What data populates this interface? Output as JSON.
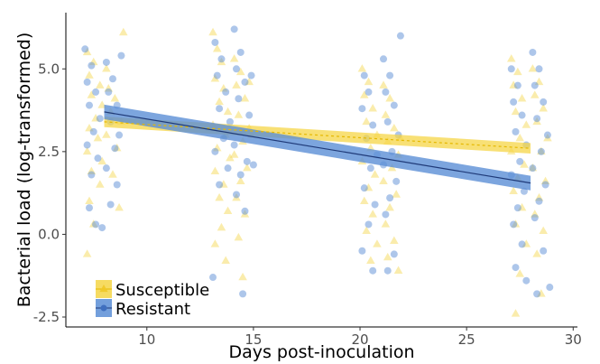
{
  "chart_data": {
    "type": "scatter",
    "xlabel": "Days post-inoculation",
    "ylabel": "Bacterial load (log-transformed)",
    "xlim": [
      6.2,
      30.2
    ],
    "ylim": [
      -2.8,
      6.7
    ],
    "xticks": [
      10,
      15,
      20,
      25,
      30
    ],
    "yticks": [
      -2.5,
      0.0,
      2.5,
      5.0
    ],
    "ytick_labels": [
      "-2.5",
      "0.0",
      "2.5",
      "5.0"
    ],
    "grid": false,
    "legend_position": "bottom-left",
    "series": [
      {
        "name": "Susceptible",
        "marker": "triangle",
        "color": "#F5D547",
        "fit": {
          "x": [
            8,
            28
          ],
          "y": [
            3.4,
            2.6
          ],
          "ci_halfwidth": 0.16
        },
        "points": [
          [
            7.2,
            5.5
          ],
          [
            7.5,
            5.2
          ],
          [
            7.3,
            4.8
          ],
          [
            7.8,
            4.5
          ],
          [
            7.4,
            4.2
          ],
          [
            7.9,
            3.9
          ],
          [
            7.6,
            3.5
          ],
          [
            7.3,
            3.2
          ],
          [
            7.7,
            2.9
          ],
          [
            7.2,
            2.5
          ],
          [
            7.9,
            2.2
          ],
          [
            7.4,
            1.9
          ],
          [
            7.8,
            1.5
          ],
          [
            7.3,
            1.0
          ],
          [
            7.5,
            0.3
          ],
          [
            7.2,
            -0.6
          ],
          [
            8.2,
            4.4
          ],
          [
            8.5,
            4.1
          ],
          [
            8.3,
            3.7
          ],
          [
            8.8,
            3.4
          ],
          [
            8.1,
            3.0
          ],
          [
            8.6,
            2.6
          ],
          [
            8.4,
            1.8
          ],
          [
            8.7,
            0.8
          ],
          [
            8.9,
            6.1
          ],
          [
            8.1,
            5.0
          ],
          [
            13.1,
            6.1
          ],
          [
            13.3,
            5.6
          ],
          [
            13.5,
            5.2
          ],
          [
            13.2,
            4.7
          ],
          [
            13.6,
            4.4
          ],
          [
            13.4,
            4.0
          ],
          [
            13.8,
            3.7
          ],
          [
            13.1,
            3.3
          ],
          [
            13.7,
            3.0
          ],
          [
            13.3,
            2.6
          ],
          [
            13.9,
            2.3
          ],
          [
            13.2,
            1.9
          ],
          [
            13.6,
            1.5
          ],
          [
            13.4,
            1.1
          ],
          [
            13.8,
            0.7
          ],
          [
            13.5,
            0.2
          ],
          [
            13.2,
            -0.3
          ],
          [
            13.7,
            -0.8
          ],
          [
            14.1,
            5.3
          ],
          [
            14.4,
            4.9
          ],
          [
            14.2,
            4.5
          ],
          [
            14.6,
            4.1
          ],
          [
            14.3,
            3.6
          ],
          [
            14.8,
            3.2
          ],
          [
            14.5,
            2.8
          ],
          [
            14.1,
            2.4
          ],
          [
            14.7,
            2.0
          ],
          [
            14.4,
            1.6
          ],
          [
            14.2,
            1.1
          ],
          [
            14.6,
            0.6
          ],
          [
            14.3,
            -0.1
          ],
          [
            14.5,
            -1.3
          ],
          [
            14.9,
            3.0
          ],
          [
            14.8,
            4.6
          ],
          [
            20.1,
            5.0
          ],
          [
            20.4,
            4.6
          ],
          [
            20.2,
            4.2
          ],
          [
            20.6,
            3.8
          ],
          [
            20.3,
            3.4
          ],
          [
            20.8,
            3.0
          ],
          [
            20.5,
            2.6
          ],
          [
            20.1,
            2.2
          ],
          [
            20.7,
            1.8
          ],
          [
            20.4,
            1.4
          ],
          [
            20.2,
            1.0
          ],
          [
            20.6,
            0.6
          ],
          [
            20.3,
            0.1
          ],
          [
            20.8,
            -0.3
          ],
          [
            20.5,
            -0.8
          ],
          [
            21.1,
            4.5
          ],
          [
            21.4,
            4.1
          ],
          [
            21.2,
            3.6
          ],
          [
            21.6,
            3.2
          ],
          [
            21.3,
            2.8
          ],
          [
            21.8,
            2.4
          ],
          [
            21.5,
            2.0
          ],
          [
            21.1,
            1.6
          ],
          [
            21.7,
            1.2
          ],
          [
            21.4,
            0.8
          ],
          [
            21.2,
            0.3
          ],
          [
            21.6,
            -0.2
          ],
          [
            21.3,
            -0.7
          ],
          [
            21.8,
            -1.1
          ],
          [
            21.9,
            2.9
          ],
          [
            27.1,
            5.3
          ],
          [
            27.4,
            4.9
          ],
          [
            27.2,
            4.5
          ],
          [
            27.6,
            4.1
          ],
          [
            27.3,
            3.7
          ],
          [
            27.8,
            3.3
          ],
          [
            27.5,
            2.9
          ],
          [
            27.1,
            2.5
          ],
          [
            27.7,
            2.1
          ],
          [
            27.4,
            1.7
          ],
          [
            27.2,
            1.3
          ],
          [
            27.6,
            0.8
          ],
          [
            27.3,
            0.3
          ],
          [
            27.8,
            -0.3
          ],
          [
            27.5,
            -1.2
          ],
          [
            27.3,
            -2.4
          ],
          [
            28.1,
            5.0
          ],
          [
            28.4,
            4.6
          ],
          [
            28.2,
            4.2
          ],
          [
            28.6,
            3.8
          ],
          [
            28.3,
            3.4
          ],
          [
            28.8,
            2.9
          ],
          [
            28.5,
            2.5
          ],
          [
            28.1,
            2.0
          ],
          [
            28.7,
            1.6
          ],
          [
            28.4,
            1.1
          ],
          [
            28.2,
            0.6
          ],
          [
            28.6,
            0.1
          ],
          [
            28.3,
            -0.6
          ],
          [
            28.5,
            -1.8
          ]
        ]
      },
      {
        "name": "Resistant",
        "marker": "circle",
        "color": "#5B8ED6",
        "fit": {
          "x": [
            8,
            28
          ],
          "y": [
            3.7,
            1.55
          ],
          "ci_halfwidth": 0.22
        },
        "points": [
          [
            7.1,
            5.6
          ],
          [
            7.4,
            5.1
          ],
          [
            7.2,
            4.6
          ],
          [
            7.6,
            4.3
          ],
          [
            7.3,
            3.9
          ],
          [
            7.8,
            3.5
          ],
          [
            7.5,
            3.1
          ],
          [
            7.2,
            2.7
          ],
          [
            7.7,
            2.3
          ],
          [
            7.4,
            1.8
          ],
          [
            7.3,
            0.8
          ],
          [
            7.6,
            0.3
          ],
          [
            8.1,
            5.2
          ],
          [
            8.4,
            4.7
          ],
          [
            8.2,
            4.3
          ],
          [
            8.6,
            3.9
          ],
          [
            8.3,
            3.4
          ],
          [
            8.7,
            3.0
          ],
          [
            8.5,
            2.6
          ],
          [
            8.1,
            2.0
          ],
          [
            8.6,
            1.5
          ],
          [
            8.3,
            0.9
          ],
          [
            8.8,
            5.4
          ],
          [
            7.9,
            0.2
          ],
          [
            13.2,
            5.8
          ],
          [
            13.5,
            5.3
          ],
          [
            13.3,
            4.8
          ],
          [
            13.7,
            4.3
          ],
          [
            13.4,
            3.8
          ],
          [
            13.9,
            3.4
          ],
          [
            13.6,
            2.9
          ],
          [
            13.2,
            2.5
          ],
          [
            13.8,
            2.0
          ],
          [
            13.4,
            1.5
          ],
          [
            13.1,
            -1.3
          ],
          [
            14.1,
            6.2
          ],
          [
            14.4,
            5.5
          ],
          [
            14.2,
            5.0
          ],
          [
            14.6,
            4.6
          ],
          [
            14.3,
            4.1
          ],
          [
            14.8,
            3.6
          ],
          [
            14.5,
            3.1
          ],
          [
            14.1,
            2.7
          ],
          [
            14.7,
            2.2
          ],
          [
            14.4,
            1.8
          ],
          [
            14.2,
            1.2
          ],
          [
            14.6,
            0.7
          ],
          [
            14.5,
            -1.8
          ],
          [
            15.0,
            2.1
          ],
          [
            14.9,
            4.8
          ],
          [
            20.2,
            4.8
          ],
          [
            20.4,
            4.3
          ],
          [
            20.1,
            3.8
          ],
          [
            20.6,
            3.3
          ],
          [
            20.3,
            2.9
          ],
          [
            20.8,
            2.4
          ],
          [
            20.5,
            2.0
          ],
          [
            20.2,
            1.4
          ],
          [
            20.7,
            0.9
          ],
          [
            20.4,
            0.3
          ],
          [
            20.1,
            -0.5
          ],
          [
            20.6,
            -1.1
          ],
          [
            21.1,
            5.3
          ],
          [
            21.4,
            4.8
          ],
          [
            21.2,
            4.3
          ],
          [
            21.6,
            3.9
          ],
          [
            21.3,
            3.4
          ],
          [
            21.8,
            3.0
          ],
          [
            21.5,
            2.5
          ],
          [
            21.1,
            2.1
          ],
          [
            21.7,
            1.6
          ],
          [
            21.4,
            1.1
          ],
          [
            21.2,
            0.6
          ],
          [
            21.6,
            -0.6
          ],
          [
            21.3,
            -1.1
          ],
          [
            21.9,
            6.0
          ],
          [
            27.1,
            5.0
          ],
          [
            27.4,
            4.5
          ],
          [
            27.2,
            4.0
          ],
          [
            27.6,
            3.6
          ],
          [
            27.3,
            3.1
          ],
          [
            27.8,
            2.7
          ],
          [
            27.5,
            2.2
          ],
          [
            27.1,
            1.8
          ],
          [
            27.7,
            1.3
          ],
          [
            27.4,
            0.8
          ],
          [
            27.2,
            0.3
          ],
          [
            27.6,
            -0.3
          ],
          [
            27.3,
            -1.0
          ],
          [
            27.8,
            -1.4
          ],
          [
            28.1,
            5.5
          ],
          [
            28.4,
            5.0
          ],
          [
            28.2,
            4.5
          ],
          [
            28.6,
            4.0
          ],
          [
            28.3,
            3.5
          ],
          [
            28.8,
            3.0
          ],
          [
            28.5,
            2.5
          ],
          [
            28.1,
            2.0
          ],
          [
            28.7,
            1.5
          ],
          [
            28.4,
            1.0
          ],
          [
            28.2,
            0.5
          ],
          [
            28.6,
            -0.5
          ],
          [
            28.3,
            -1.8
          ],
          [
            28.9,
            -1.6
          ]
        ]
      }
    ]
  }
}
